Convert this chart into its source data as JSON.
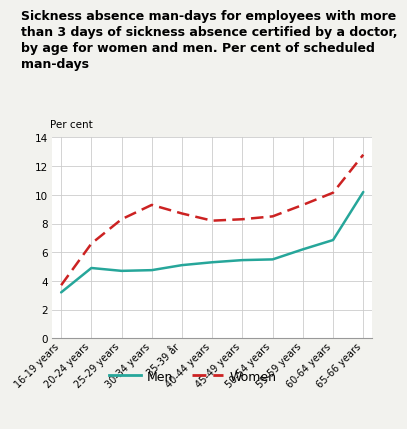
{
  "title_line1": "Sickness absence man-days for employees with more",
  "title_line2": "than 3 days of sickness absence certified by a doctor,",
  "title_line3": "by age for women and men. Per cent of scheduled",
  "title_line4": "man-days",
  "ylabel": "Per cent",
  "categories": [
    "16-19 years",
    "20-24 years",
    "25-29 years",
    "30-34 years",
    "35-39 år",
    "40-44 years",
    "45-49 years",
    "50-54 years",
    "55-59 years",
    "60-64 years",
    "65-66 years"
  ],
  "men_values": [
    3.2,
    4.9,
    4.7,
    4.75,
    5.1,
    5.3,
    5.45,
    5.5,
    6.2,
    6.85,
    10.2
  ],
  "women_values": [
    3.7,
    6.6,
    8.3,
    9.3,
    8.7,
    8.2,
    8.3,
    8.5,
    9.3,
    10.15,
    12.8
  ],
  "men_color": "#26a69a",
  "women_color": "#cc2222",
  "ylim": [
    0,
    14
  ],
  "yticks": [
    0,
    2,
    4,
    6,
    8,
    10,
    12,
    14
  ],
  "legend_men": "Men",
  "legend_women": "Women",
  "title_fontsize": 9.0,
  "bg_color": "#f2f2ee",
  "plot_bg": "#ffffff",
  "grid_color": "#cccccc",
  "teal_line_color": "#00b0b0"
}
